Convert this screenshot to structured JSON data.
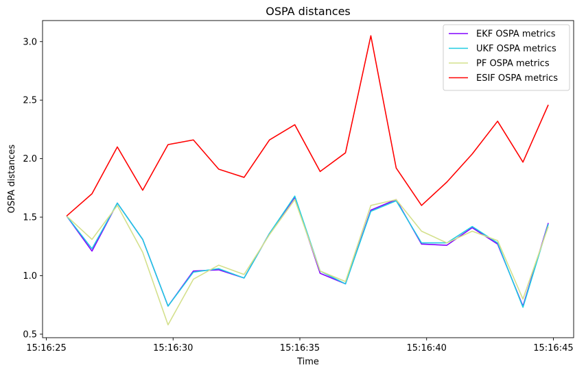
{
  "chart_data": {
    "type": "line",
    "title": "OSPA distances",
    "xlabel": "Time",
    "ylabel": "OSPA distances",
    "x_ticks": [
      {
        "t": 0,
        "label": "15:16:25"
      },
      {
        "t": 5,
        "label": "15:16:30"
      },
      {
        "t": 10,
        "label": "15:16:35"
      },
      {
        "t": 15,
        "label": "15:16:40"
      },
      {
        "t": 20,
        "label": "15:16:45"
      }
    ],
    "y_ticks": [
      0.5,
      1.0,
      1.5,
      2.0,
      2.5,
      3.0
    ],
    "y_tick_labels": [
      "0.5",
      "1.0",
      "1.5",
      "2.0",
      "2.5",
      "3.0"
    ],
    "xlim": [
      -0.15,
      20.8
    ],
    "ylim": [
      0.47,
      3.18
    ],
    "grid": false,
    "legend_position": "top-right",
    "x": [
      0.8,
      1.8,
      2.8,
      3.8,
      4.8,
      5.8,
      6.8,
      7.8,
      8.8,
      9.8,
      10.8,
      11.8,
      12.8,
      13.8,
      14.8,
      15.8,
      16.8,
      17.8,
      18.8,
      19.8
    ],
    "series": [
      {
        "name": "EKF OSPA metrics",
        "color": "#8000ff",
        "values": [
          1.51,
          1.21,
          1.62,
          1.31,
          0.74,
          1.04,
          1.05,
          0.98,
          1.36,
          1.67,
          1.02,
          0.93,
          1.56,
          1.65,
          1.27,
          1.26,
          1.41,
          1.27,
          0.74,
          1.45
        ]
      },
      {
        "name": "UKF OSPA metrics",
        "color": "#1ecbe1",
        "values": [
          1.51,
          1.23,
          1.62,
          1.31,
          0.74,
          1.03,
          1.06,
          0.98,
          1.36,
          1.68,
          1.04,
          0.93,
          1.55,
          1.64,
          1.28,
          1.28,
          1.42,
          1.28,
          0.73,
          1.44
        ]
      },
      {
        "name": "PF OSPA metrics",
        "color": "#d4e08c",
        "values": [
          1.51,
          1.31,
          1.6,
          1.2,
          0.58,
          0.97,
          1.09,
          1.01,
          1.35,
          1.65,
          1.04,
          0.95,
          1.6,
          1.65,
          1.38,
          1.28,
          1.38,
          1.3,
          0.8,
          1.42
        ]
      },
      {
        "name": "ESIF OSPA metrics",
        "color": "#ff0000",
        "values": [
          1.51,
          1.7,
          2.1,
          1.73,
          2.12,
          2.16,
          1.91,
          1.84,
          2.16,
          2.29,
          1.89,
          2.05,
          3.05,
          1.92,
          1.6,
          1.8,
          2.04,
          2.32,
          1.97,
          2.46
        ]
      }
    ]
  }
}
